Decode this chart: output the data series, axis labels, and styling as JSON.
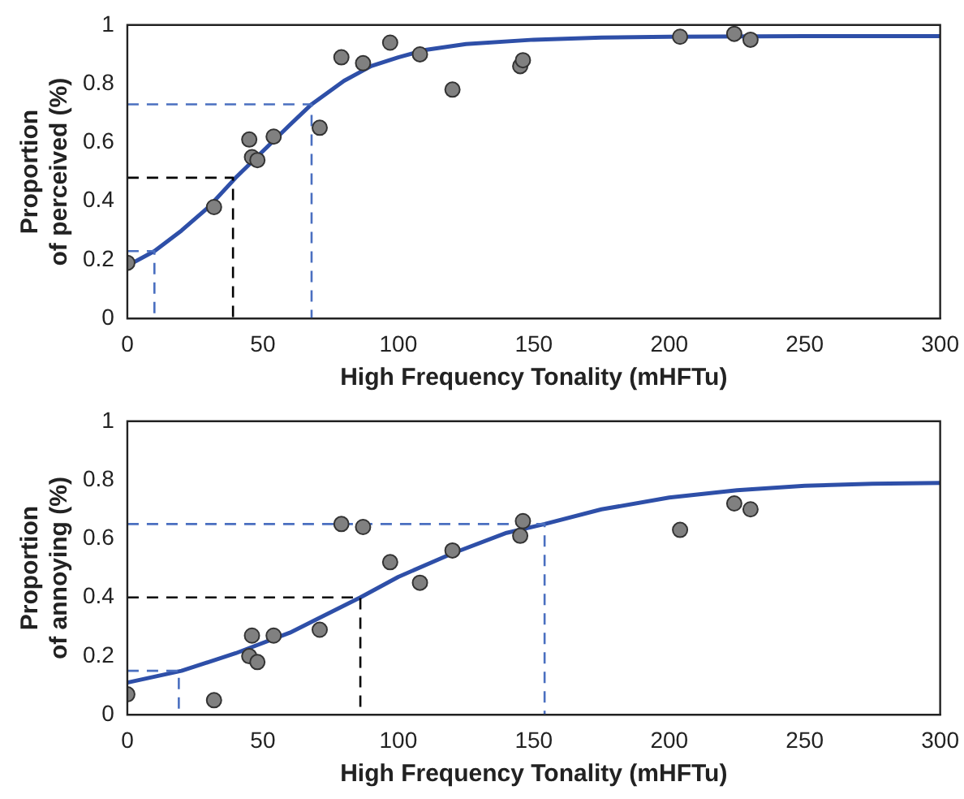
{
  "chart_data": [
    {
      "type": "scatter",
      "xlabel": "High Frequency Tonality (mHFTu)",
      "ylabel": "Proportion\nof perceived (%)",
      "xlim": [
        0,
        300
      ],
      "ylim": [
        0,
        1
      ],
      "xticks": [
        0,
        50,
        100,
        150,
        200,
        250,
        300
      ],
      "yticks": [
        0,
        0.2,
        0.4,
        0.6,
        0.8,
        1
      ],
      "series": [
        {
          "type": "line",
          "line_style": "dashed",
          "color": "#4a6fc0",
          "x": [
            0,
            10,
            10
          ],
          "values": [
            0.23,
            0.23,
            0
          ]
        },
        {
          "type": "line",
          "line_style": "dashed",
          "color": "#4a6fc0",
          "x": [
            0,
            68,
            68
          ],
          "values": [
            0.73,
            0.73,
            0
          ]
        },
        {
          "type": "line",
          "line_style": "dashed",
          "color": "#000000",
          "x": [
            0,
            39,
            39
          ],
          "values": [
            0.48,
            0.48,
            0
          ]
        },
        {
          "type": "line",
          "line_style": "solid",
          "color": "#2e4fa8",
          "x": [
            0,
            10,
            20,
            30,
            40,
            50,
            60,
            68,
            80,
            90,
            100,
            110,
            125,
            150,
            175,
            200,
            250,
            300
          ],
          "values": [
            0.18,
            0.23,
            0.3,
            0.38,
            0.48,
            0.57,
            0.66,
            0.73,
            0.81,
            0.86,
            0.89,
            0.915,
            0.935,
            0.95,
            0.957,
            0.96,
            0.962,
            0.962
          ]
        },
        {
          "marker": "circle",
          "color": "#808080",
          "x": [
            0,
            32,
            45,
            46,
            48,
            54,
            71,
            79,
            87,
            97,
            108,
            120,
            145,
            146,
            204,
            224,
            230
          ],
          "values": [
            0.19,
            0.38,
            0.61,
            0.55,
            0.54,
            0.62,
            0.65,
            0.89,
            0.87,
            0.94,
            0.9,
            0.78,
            0.86,
            0.88,
            0.96,
            0.97,
            0.95
          ]
        }
      ]
    },
    {
      "type": "scatter",
      "xlabel": "High Frequency Tonality (mHFTu)",
      "ylabel": "Proportion\nof annoying (%)",
      "xlim": [
        0,
        300
      ],
      "ylim": [
        0,
        1
      ],
      "xticks": [
        0,
        50,
        100,
        150,
        200,
        250,
        300
      ],
      "yticks": [
        0,
        0.2,
        0.4,
        0.6,
        0.8,
        1
      ],
      "series": [
        {
          "type": "line",
          "line_style": "dashed",
          "color": "#4a6fc0",
          "x": [
            0,
            19,
            19
          ],
          "values": [
            0.15,
            0.15,
            0
          ]
        },
        {
          "type": "line",
          "line_style": "dashed",
          "color": "#4a6fc0",
          "x": [
            0,
            154,
            154
          ],
          "values": [
            0.65,
            0.65,
            0
          ]
        },
        {
          "type": "line",
          "line_style": "dashed",
          "color": "#000000",
          "x": [
            0,
            86,
            86
          ],
          "values": [
            0.4,
            0.4,
            0
          ]
        },
        {
          "type": "line",
          "line_style": "solid",
          "color": "#2e4fa8",
          "x": [
            0,
            20,
            40,
            60,
            86,
            100,
            120,
            140,
            154,
            175,
            200,
            225,
            250,
            275,
            300
          ],
          "values": [
            0.11,
            0.15,
            0.21,
            0.28,
            0.4,
            0.47,
            0.55,
            0.62,
            0.65,
            0.7,
            0.74,
            0.765,
            0.78,
            0.787,
            0.79
          ]
        },
        {
          "marker": "circle",
          "color": "#808080",
          "x": [
            0,
            32,
            45,
            46,
            48,
            54,
            71,
            79,
            87,
            97,
            108,
            120,
            145,
            146,
            204,
            224,
            230
          ],
          "values": [
            0.07,
            0.05,
            0.2,
            0.27,
            0.18,
            0.27,
            0.29,
            0.65,
            0.64,
            0.52,
            0.45,
            0.56,
            0.61,
            0.66,
            0.63,
            0.72,
            0.7
          ]
        }
      ]
    }
  ]
}
